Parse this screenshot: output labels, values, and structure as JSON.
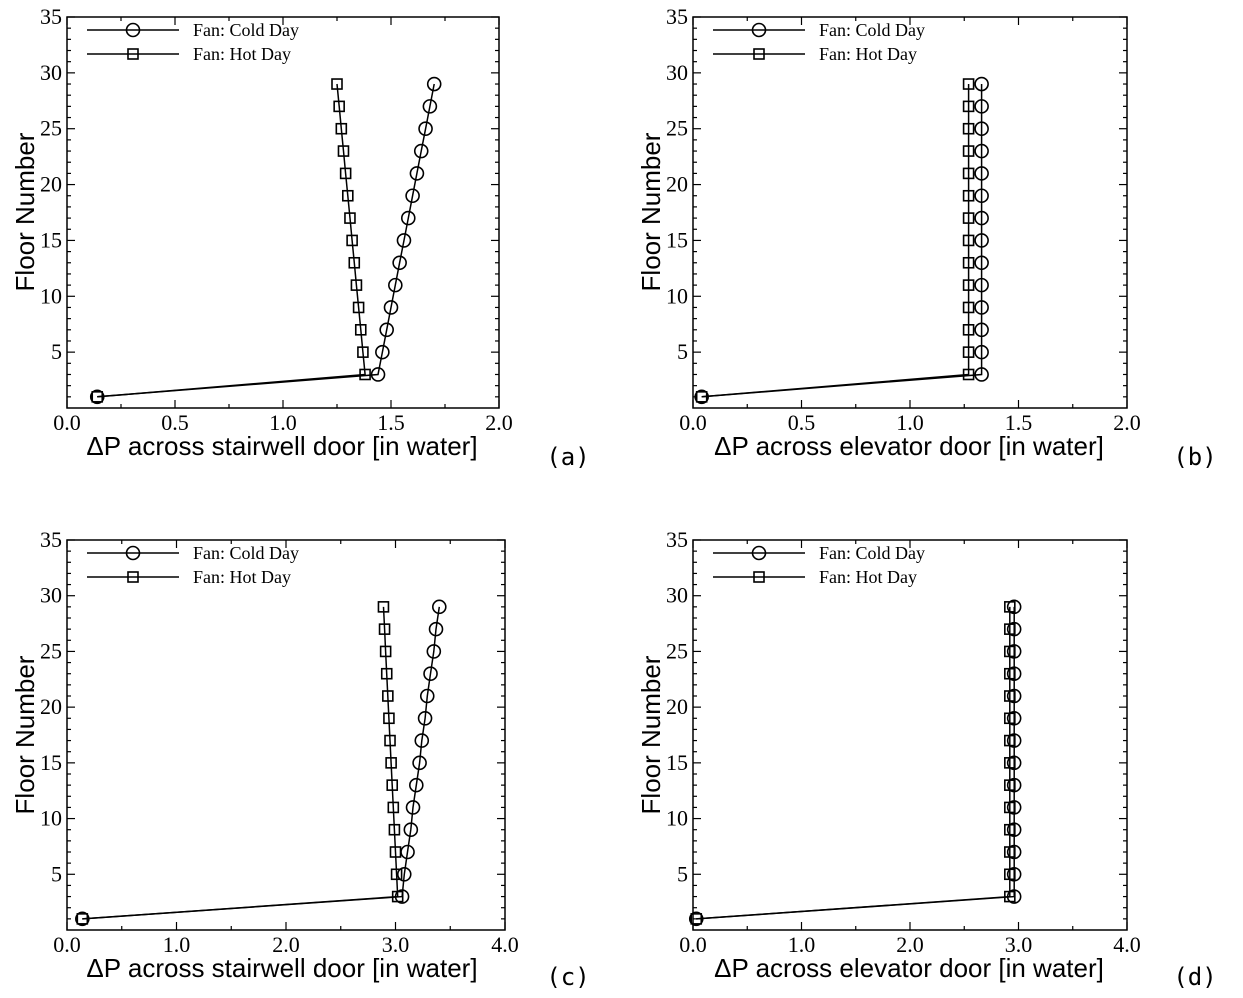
{
  "chart_data": [
    {
      "type": "line",
      "panel_tag": "(a)",
      "xlabel": "ΔP across stairwell door [in water]",
      "ylabel": "Floor Number",
      "xlim": [
        0,
        2.0
      ],
      "ylim": [
        0,
        35
      ],
      "xticks": [
        "0.0",
        "0.5",
        "1.0",
        "1.5",
        "2.0"
      ],
      "yticks": [
        "5",
        "10",
        "15",
        "20",
        "25",
        "30",
        "35"
      ],
      "legend": "top-left",
      "series": [
        {
          "name": "Fan: Cold Day",
          "marker": "circle",
          "x": [
            0.14,
            1.44,
            1.46,
            1.48,
            1.5,
            1.52,
            1.54,
            1.56,
            1.58,
            1.6,
            1.62,
            1.64,
            1.66,
            1.68,
            1.7
          ],
          "y": [
            1,
            3,
            5,
            7,
            9,
            11,
            13,
            15,
            17,
            19,
            21,
            23,
            25,
            27,
            29
          ]
        },
        {
          "name": "Fan: Hot Day",
          "marker": "square",
          "x": [
            0.14,
            1.38,
            1.37,
            1.36,
            1.35,
            1.34,
            1.33,
            1.32,
            1.31,
            1.3,
            1.29,
            1.28,
            1.27,
            1.26,
            1.25
          ],
          "y": [
            1,
            3,
            5,
            7,
            9,
            11,
            13,
            15,
            17,
            19,
            21,
            23,
            25,
            27,
            29
          ]
        }
      ]
    },
    {
      "type": "line",
      "panel_tag": "(b)",
      "xlabel": "ΔP across elevator door [in water]",
      "ylabel": "Floor Number",
      "xlim": [
        0,
        2.0
      ],
      "ylim": [
        0,
        35
      ],
      "xticks": [
        "0.0",
        "0.5",
        "1.0",
        "1.5",
        "2.0"
      ],
      "yticks": [
        "5",
        "10",
        "15",
        "20",
        "25",
        "30",
        "35"
      ],
      "legend": "top-left",
      "series": [
        {
          "name": "Fan: Cold Day",
          "marker": "circle",
          "x": [
            0.04,
            1.33,
            1.33,
            1.33,
            1.33,
            1.33,
            1.33,
            1.33,
            1.33,
            1.33,
            1.33,
            1.33,
            1.33,
            1.33,
            1.33
          ],
          "y": [
            1,
            3,
            5,
            7,
            9,
            11,
            13,
            15,
            17,
            19,
            21,
            23,
            25,
            27,
            29
          ]
        },
        {
          "name": "Fan: Hot Day",
          "marker": "square",
          "x": [
            0.04,
            1.27,
            1.27,
            1.27,
            1.27,
            1.27,
            1.27,
            1.27,
            1.27,
            1.27,
            1.27,
            1.27,
            1.27,
            1.27,
            1.27
          ],
          "y": [
            1,
            3,
            5,
            7,
            9,
            11,
            13,
            15,
            17,
            19,
            21,
            23,
            25,
            27,
            29
          ]
        }
      ]
    },
    {
      "type": "line",
      "panel_tag": "(c)",
      "xlabel": "ΔP across stairwell door [in water]",
      "ylabel": "Floor Number",
      "xlim": [
        0,
        4.0
      ],
      "ylim": [
        0,
        35
      ],
      "xticks": [
        "0.0",
        "1.0",
        "2.0",
        "3.0",
        "4.0"
      ],
      "yticks": [
        "5",
        "10",
        "15",
        "20",
        "25",
        "30",
        "35"
      ],
      "legend": "top-left",
      "series": [
        {
          "name": "Fan: Cold Day",
          "marker": "circle",
          "x": [
            0.14,
            3.06,
            3.08,
            3.11,
            3.14,
            3.16,
            3.19,
            3.22,
            3.24,
            3.27,
            3.29,
            3.32,
            3.35,
            3.37,
            3.4
          ],
          "y": [
            1,
            3,
            5,
            7,
            9,
            11,
            13,
            15,
            17,
            19,
            21,
            23,
            25,
            27,
            29
          ]
        },
        {
          "name": "Fan: Hot Day",
          "marker": "square",
          "x": [
            0.14,
            3.02,
            3.01,
            3.0,
            2.99,
            2.98,
            2.97,
            2.96,
            2.95,
            2.94,
            2.93,
            2.92,
            2.91,
            2.9,
            2.89
          ],
          "y": [
            1,
            3,
            5,
            7,
            9,
            11,
            13,
            15,
            17,
            19,
            21,
            23,
            25,
            27,
            29
          ]
        }
      ]
    },
    {
      "type": "line",
      "panel_tag": "(d)",
      "xlabel": "ΔP across elevator door [in water]",
      "ylabel": "Floor Number",
      "xlim": [
        0,
        4.0
      ],
      "ylim": [
        0,
        35
      ],
      "xticks": [
        "0.0",
        "1.0",
        "2.0",
        "3.0",
        "4.0"
      ],
      "yticks": [
        "5",
        "10",
        "15",
        "20",
        "25",
        "30",
        "35"
      ],
      "legend": "top-left",
      "series": [
        {
          "name": "Fan: Cold Day",
          "marker": "circle",
          "x": [
            0.03,
            2.96,
            2.96,
            2.96,
            2.96,
            2.96,
            2.96,
            2.96,
            2.96,
            2.96,
            2.96,
            2.96,
            2.96,
            2.96,
            2.96
          ],
          "y": [
            1,
            3,
            5,
            7,
            9,
            11,
            13,
            15,
            17,
            19,
            21,
            23,
            25,
            27,
            29
          ]
        },
        {
          "name": "Fan: Hot Day",
          "marker": "square",
          "x": [
            0.03,
            2.92,
            2.92,
            2.92,
            2.92,
            2.92,
            2.92,
            2.92,
            2.92,
            2.92,
            2.92,
            2.92,
            2.92,
            2.92,
            2.92
          ],
          "y": [
            1,
            3,
            5,
            7,
            9,
            11,
            13,
            15,
            17,
            19,
            21,
            23,
            25,
            27,
            29
          ]
        }
      ]
    }
  ]
}
